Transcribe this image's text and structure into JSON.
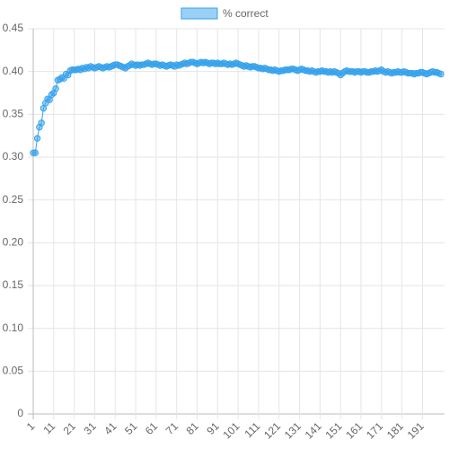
{
  "chart_data": {
    "type": "line",
    "categories": [
      "1",
      null,
      null,
      null,
      null,
      null,
      null,
      null,
      null,
      null,
      "11",
      null,
      null,
      null,
      null,
      null,
      null,
      null,
      null,
      null,
      "21",
      null,
      null,
      null,
      null,
      null,
      null,
      null,
      null,
      null,
      "31",
      null,
      null,
      null,
      null,
      null,
      null,
      null,
      null,
      null,
      "41",
      null,
      null,
      null,
      null,
      null,
      null,
      null,
      null,
      null,
      "51",
      null,
      null,
      null,
      null,
      null,
      null,
      null,
      null,
      null,
      "61",
      null,
      null,
      null,
      null,
      null,
      null,
      null,
      null,
      null,
      "71",
      null,
      null,
      null,
      null,
      null,
      null,
      null,
      null,
      null,
      "81",
      null,
      null,
      null,
      null,
      null,
      null,
      null,
      null,
      null,
      "91",
      null,
      null,
      null,
      null,
      null,
      null,
      null,
      null,
      null,
      "101",
      null,
      null,
      null,
      null,
      null,
      null,
      null,
      null,
      null,
      "111",
      null,
      null,
      null,
      null,
      null,
      null,
      null,
      null,
      null,
      "121",
      null,
      null,
      null,
      null,
      null,
      null,
      null,
      null,
      null,
      "131",
      null,
      null,
      null,
      null,
      null,
      null,
      null,
      null,
      null,
      "141",
      null,
      null,
      null,
      null,
      null,
      null,
      null,
      null,
      null,
      "151",
      null,
      null,
      null,
      null,
      null,
      null,
      null,
      null,
      null,
      "161",
      null,
      null,
      null,
      null,
      null,
      null,
      null,
      null,
      null,
      "171",
      null,
      null,
      null,
      null,
      null,
      null,
      null,
      null,
      null,
      "181",
      null,
      null,
      null,
      null,
      null,
      null,
      null,
      null,
      null,
      "191",
      null,
      null,
      null,
      null,
      null,
      null,
      null,
      null,
      null
    ],
    "series": [
      {
        "name": "% correct",
        "color": "#36a2eb",
        "values": [
          0.305,
          0.305,
          0.322,
          0.335,
          0.34,
          0.357,
          0.363,
          0.368,
          0.367,
          0.373,
          0.375,
          0.38,
          0.39,
          0.391,
          0.393,
          0.392,
          0.397,
          0.396,
          0.401,
          0.402,
          0.402,
          0.402,
          0.403,
          0.402,
          0.404,
          0.403,
          0.405,
          0.404,
          0.406,
          0.405,
          0.404,
          0.405,
          0.406,
          0.405,
          0.404,
          0.405,
          0.406,
          0.405,
          0.406,
          0.407,
          0.408,
          0.408,
          0.407,
          0.406,
          0.405,
          0.404,
          0.406,
          0.407,
          0.409,
          0.408,
          0.407,
          0.408,
          0.407,
          0.408,
          0.408,
          0.409,
          0.41,
          0.409,
          0.408,
          0.409,
          0.409,
          0.408,
          0.407,
          0.408,
          0.407,
          0.406,
          0.407,
          0.408,
          0.407,
          0.406,
          0.408,
          0.407,
          0.408,
          0.409,
          0.41,
          0.409,
          0.41,
          0.411,
          0.411,
          0.41,
          0.409,
          0.41,
          0.411,
          0.41,
          0.411,
          0.41,
          0.409,
          0.41,
          0.41,
          0.409,
          0.41,
          0.409,
          0.409,
          0.41,
          0.409,
          0.408,
          0.409,
          0.408,
          0.409,
          0.41,
          0.409,
          0.408,
          0.407,
          0.406,
          0.407,
          0.406,
          0.405,
          0.406,
          0.406,
          0.405,
          0.404,
          0.404,
          0.403,
          0.404,
          0.403,
          0.402,
          0.402,
          0.401,
          0.402,
          0.401,
          0.4,
          0.401,
          0.401,
          0.402,
          0.402,
          0.402,
          0.403,
          0.403,
          0.402,
          0.401,
          0.402,
          0.403,
          0.402,
          0.401,
          0.401,
          0.4,
          0.401,
          0.4,
          0.399,
          0.4,
          0.4,
          0.401,
          0.4,
          0.4,
          0.399,
          0.4,
          0.399,
          0.4,
          0.399,
          0.398,
          0.396,
          0.398,
          0.4,
          0.401,
          0.4,
          0.4,
          0.4,
          0.399,
          0.4,
          0.4,
          0.399,
          0.4,
          0.4,
          0.399,
          0.399,
          0.4,
          0.4,
          0.401,
          0.4,
          0.401,
          0.402,
          0.4,
          0.399,
          0.4,
          0.399,
          0.398,
          0.399,
          0.399,
          0.4,
          0.399,
          0.399,
          0.4,
          0.399,
          0.398,
          0.398,
          0.398,
          0.397,
          0.398,
          0.398,
          0.399,
          0.399,
          0.398,
          0.397,
          0.398,
          0.399,
          0.4,
          0.399,
          0.399,
          0.398,
          0.397
        ]
      }
    ],
    "ylim": [
      0,
      0.45
    ],
    "yticks": [
      0,
      0.05,
      {
        "value": 0.1,
        "label": "0.10"
      },
      0.15,
      {
        "value": 0.2,
        "label": "0.20"
      },
      0.25,
      {
        "value": 0.3,
        "label": "0.30"
      },
      0.35,
      {
        "value": 0.4,
        "label": "0.40"
      },
      0.45
    ],
    "grid": true,
    "legend": "top"
  }
}
